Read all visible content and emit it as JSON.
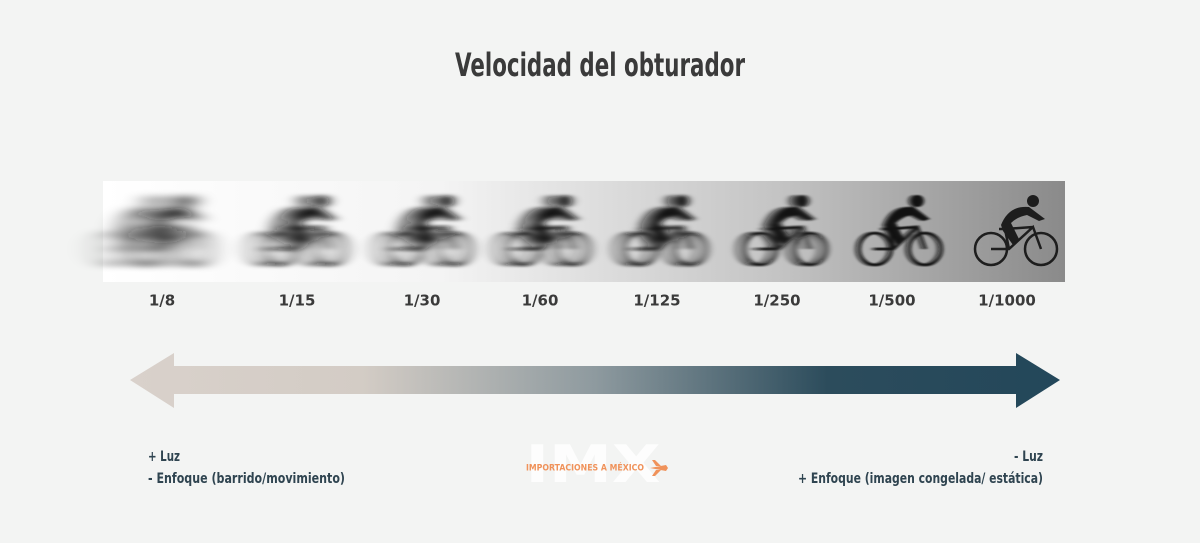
{
  "title": "Velocidad del obturador",
  "shutter_speeds": [
    "1/8",
    "1/15",
    "1/30",
    "1/60",
    "1/125",
    "1/250",
    "1/500",
    "1/1000"
  ],
  "left_labels": [
    "+ Luz",
    "- Enfoque (barrido/movimiento)"
  ],
  "right_labels": [
    "- Luz",
    "+ Enfoque (imagen congelada/ estática)"
  ],
  "watermark": {
    "logo": "IMX",
    "tagline": "IMPORTACIONES A MÉXICO"
  }
}
